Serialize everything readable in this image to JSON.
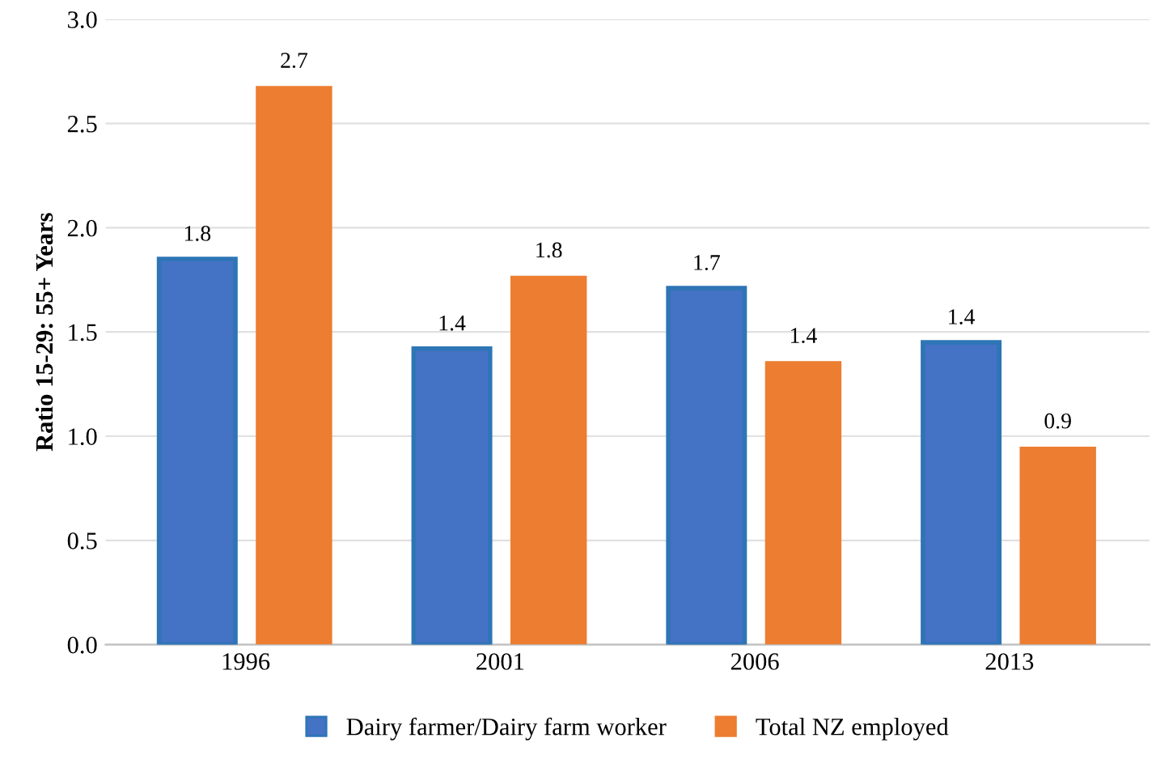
{
  "chart_data": {
    "type": "bar",
    "ylabel": "Ratio 15-29: 55+ Years",
    "categories": [
      "1996",
      "2001",
      "2006",
      "2013"
    ],
    "series": [
      {
        "name": "Dairy farmer/Dairy farm worker",
        "color": "#4472c4",
        "values": [
          1.85,
          1.42,
          1.71,
          1.45
        ],
        "value_labels": [
          "1.8",
          "1.4",
          "1.7",
          "1.4"
        ]
      },
      {
        "name": "Total NZ employed",
        "color": "#ed7d31",
        "values": [
          2.68,
          1.77,
          1.36,
          0.95
        ],
        "value_labels": [
          "2.7",
          "1.8",
          "1.4",
          "0.9"
        ]
      }
    ],
    "ylim": [
      0,
      3
    ],
    "yticks": [
      "0.0",
      "0.5",
      "1.0",
      "1.5",
      "2.0",
      "2.5",
      "3.0"
    ],
    "grid": "y",
    "legend": "bottom"
  }
}
